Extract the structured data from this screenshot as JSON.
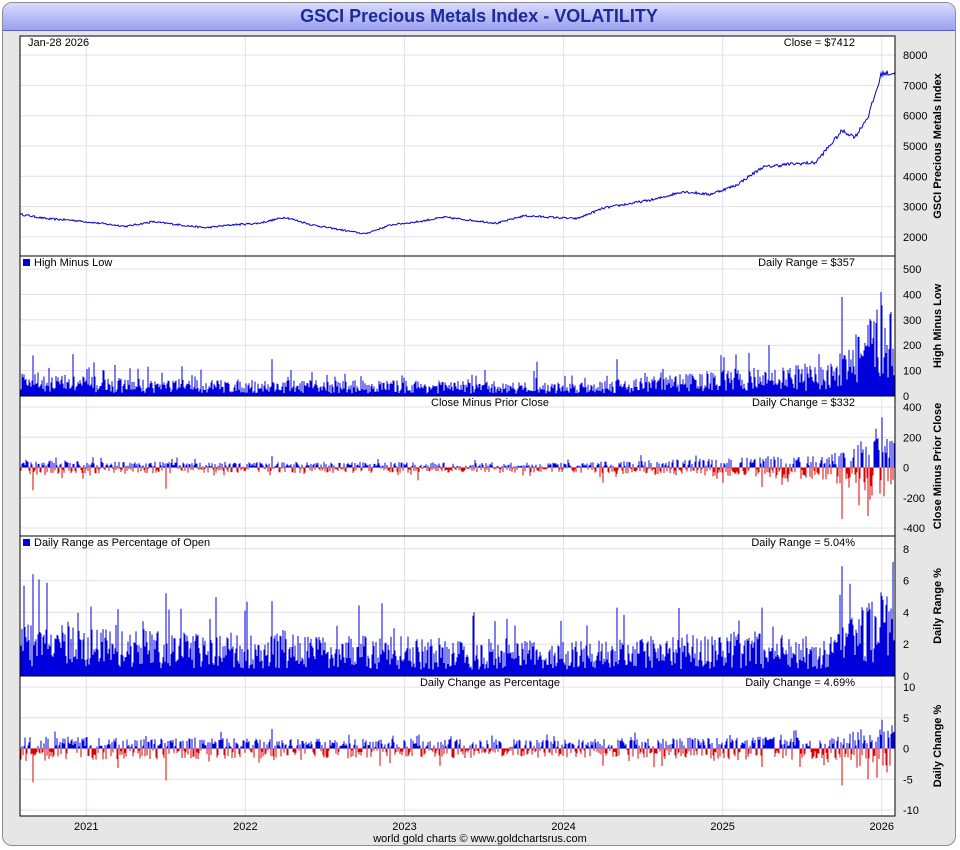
{
  "title": "GSCI Precious Metals Index - VOLATILITY",
  "date_label": "Jan-28  2026",
  "credit": "world gold charts © www.goldchartsrus.com",
  "colors": {
    "up": "#0000dd",
    "down": "#dd0000",
    "line": "#0000cc",
    "grid": "#e0e0f0"
  },
  "chart_data": [
    {
      "type": "line",
      "panel": "price",
      "ylabel": "GSCI Precious Metals Index",
      "annotation": "Close = $7412",
      "ylim": [
        1700,
        8300
      ],
      "yticks": [
        2000,
        3000,
        4000,
        5000,
        6000,
        7000,
        8000
      ],
      "x_range": [
        "2020-08",
        "2026-01"
      ],
      "xticks": [
        "2021",
        "2022",
        "2023",
        "2024",
        "2025",
        "2026"
      ],
      "series": [
        {
          "x": [
            "2020-08",
            "2020-10",
            "2020-12",
            "2021-02",
            "2021-04",
            "2021-06",
            "2021-08",
            "2021-10",
            "2021-12",
            "2022-02",
            "2022-04",
            "2022-06",
            "2022-08",
            "2022-10",
            "2022-12",
            "2023-02",
            "2023-04",
            "2023-06",
            "2023-08",
            "2023-10",
            "2023-12",
            "2024-02",
            "2024-04",
            "2024-06",
            "2024-08",
            "2024-10",
            "2024-12",
            "2025-02",
            "2025-04",
            "2025-06",
            "2025-08",
            "2025-10",
            "2025-11",
            "2025-12",
            "2026-01"
          ],
          "values": [
            2750,
            2600,
            2550,
            2450,
            2350,
            2500,
            2400,
            2300,
            2400,
            2450,
            2650,
            2400,
            2250,
            2100,
            2400,
            2500,
            2650,
            2550,
            2450,
            2700,
            2650,
            2600,
            2950,
            3100,
            3250,
            3500,
            3400,
            3700,
            4300,
            4400,
            4450,
            5500,
            5300,
            6000,
            7400
          ]
        }
      ]
    },
    {
      "type": "bar",
      "panel": "range",
      "title": "High Minus Low",
      "ylabel": "High Minus Low",
      "annotation": "Daily Range = $357",
      "ylim": [
        0,
        520
      ],
      "yticks": [
        0,
        100,
        200,
        300,
        400,
        500
      ],
      "levels": [
        [
          "2020-08",
          55
        ],
        [
          "2021-03",
          40
        ],
        [
          "2022-03",
          35
        ],
        [
          "2023-01",
          35
        ],
        [
          "2024-01",
          30
        ],
        [
          "2024-08",
          45
        ],
        [
          "2025-04",
          65
        ],
        [
          "2025-09",
          70
        ],
        [
          "2025-11",
          140
        ],
        [
          "2026-01",
          200
        ]
      ],
      "spikes": [
        [
          "2020-09",
          160
        ],
        [
          "2020-12",
          165
        ],
        [
          "2022-03",
          145
        ],
        [
          "2023-11",
          135
        ],
        [
          "2024-05",
          145
        ],
        [
          "2025-03",
          170
        ],
        [
          "2025-10",
          390
        ],
        [
          "2026-01",
          357
        ]
      ]
    },
    {
      "type": "bar",
      "panel": "change",
      "title": "Close Minus Prior Close",
      "ylabel": "Close Minus Prior Close",
      "annotation": "Daily Change = $332",
      "ylim": [
        -400,
        420
      ],
      "yticks": [
        -400,
        -200,
        0,
        200,
        400
      ],
      "levels": [
        [
          "2020-08",
          30
        ],
        [
          "2021-03",
          22
        ],
        [
          "2022-03",
          20
        ],
        [
          "2023-01",
          20
        ],
        [
          "2024-01",
          18
        ],
        [
          "2024-08",
          28
        ],
        [
          "2025-04",
          40
        ],
        [
          "2025-09",
          45
        ],
        [
          "2025-11",
          90
        ],
        [
          "2026-01",
          140
        ]
      ],
      "spikes": [
        [
          "2020-09",
          -150
        ],
        [
          "2021-07",
          -140
        ],
        [
          "2022-03",
          75
        ],
        [
          "2023-02",
          -85
        ],
        [
          "2024-04",
          -100
        ],
        [
          "2025-04",
          -130
        ],
        [
          "2025-10",
          -340
        ],
        [
          "2025-12",
          -320
        ],
        [
          "2026-01",
          332
        ]
      ]
    },
    {
      "type": "bar",
      "panel": "range_pct",
      "title": "Daily Range as Percentage of Open",
      "ylabel": "Daily Range %",
      "annotation": "Daily Range = 5.04%",
      "ylim": [
        0,
        8.3
      ],
      "yticks": [
        0,
        2,
        4,
        6,
        8
      ],
      "levels": [
        [
          "2020-08",
          2.0
        ],
        [
          "2021-03",
          1.6
        ],
        [
          "2022-03",
          1.5
        ],
        [
          "2023-01",
          1.4
        ],
        [
          "2024-01",
          1.2
        ],
        [
          "2024-08",
          1.4
        ],
        [
          "2025-04",
          1.6
        ],
        [
          "2025-09",
          1.3
        ],
        [
          "2025-11",
          2.2
        ],
        [
          "2026-01",
          3.0
        ]
      ],
      "spikes": [
        [
          "2020-09",
          6.4
        ],
        [
          "2021-07",
          5.2
        ],
        [
          "2022-03",
          4.7
        ],
        [
          "2024-05",
          4.3
        ],
        [
          "2025-04",
          4.3
        ],
        [
          "2025-10",
          6.9
        ],
        [
          "2026-01",
          5.04
        ]
      ]
    },
    {
      "type": "bar",
      "panel": "change_pct",
      "title": "Daily Change as Percentage",
      "ylabel": "Daily Change %",
      "annotation": "Daily Change = 4.69%",
      "ylim": [
        -10,
        10.5
      ],
      "yticks": [
        -10,
        -5,
        0,
        5,
        10
      ],
      "levels": [
        [
          "2020-08",
          1.2
        ],
        [
          "2021-03",
          1.0
        ],
        [
          "2022-03",
          0.9
        ],
        [
          "2023-01",
          0.9
        ],
        [
          "2024-01",
          0.8
        ],
        [
          "2024-08",
          1.0
        ],
        [
          "2025-04",
          1.1
        ],
        [
          "2025-09",
          1.0
        ],
        [
          "2025-11",
          1.6
        ],
        [
          "2026-01",
          2.2
        ]
      ],
      "spikes": [
        [
          "2020-09",
          -5.5
        ],
        [
          "2021-07",
          -5.2
        ],
        [
          "2022-03",
          3.2
        ],
        [
          "2024-04",
          -2.8
        ],
        [
          "2025-04",
          -3.0
        ],
        [
          "2025-10",
          -6.0
        ],
        [
          "2025-12",
          -5.0
        ],
        [
          "2026-01",
          4.69
        ]
      ]
    }
  ]
}
